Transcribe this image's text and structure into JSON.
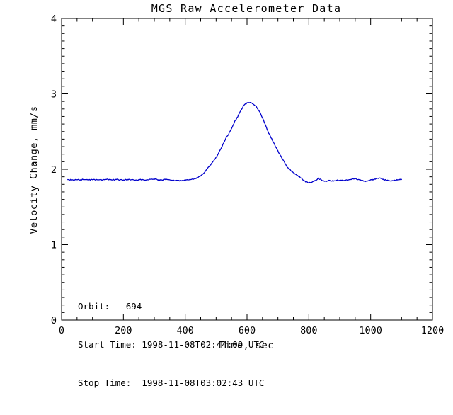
{
  "chart_data": {
    "type": "line",
    "title": "MGS Raw Accelerometer Data",
    "xlabel": "Time, sec",
    "ylabel": "Velocity Change, mm/s",
    "xlim": [
      0,
      1200
    ],
    "ylim": [
      0,
      4
    ],
    "x_major_ticks": [
      0,
      200,
      400,
      600,
      800,
      1000,
      1200
    ],
    "x_minor_step": 50,
    "y_major_ticks": [
      0,
      1,
      2,
      3,
      4
    ],
    "y_minor_step": 0.1,
    "grid": "off",
    "legend": "none",
    "line_color": "#0000cc",
    "axis_color": "#000000",
    "background_color": "#ffffff",
    "series": [
      {
        "name": "Velocity Change",
        "x_start": 20,
        "x_step": 10,
        "values": [
          1.86,
          1.862,
          1.858,
          1.863,
          1.86,
          1.865,
          1.858,
          1.861,
          1.864,
          1.859,
          1.862,
          1.857,
          1.861,
          1.864,
          1.858,
          1.862,
          1.866,
          1.86,
          1.857,
          1.861,
          1.864,
          1.859,
          1.855,
          1.86,
          1.863,
          1.857,
          1.861,
          1.866,
          1.87,
          1.862,
          1.857,
          1.861,
          1.863,
          1.857,
          1.853,
          1.849,
          1.846,
          1.851,
          1.856,
          1.861,
          1.867,
          1.875,
          1.888,
          1.91,
          1.95,
          2.0,
          2.05,
          2.1,
          2.16,
          2.23,
          2.31,
          2.4,
          2.46,
          2.54,
          2.63,
          2.7,
          2.78,
          2.845,
          2.88,
          2.89,
          2.87,
          2.83,
          2.77,
          2.68,
          2.58,
          2.48,
          2.4,
          2.32,
          2.24,
          2.17,
          2.1,
          2.03,
          1.99,
          1.955,
          1.93,
          1.9,
          1.865,
          1.835,
          1.822,
          1.826,
          1.846,
          1.88,
          1.86,
          1.842,
          1.845,
          1.85,
          1.846,
          1.851,
          1.856,
          1.85,
          1.856,
          1.862,
          1.872,
          1.876,
          1.862,
          1.85,
          1.84,
          1.846,
          1.856,
          1.862,
          1.876,
          1.88,
          1.87,
          1.855,
          1.845,
          1.85,
          1.856,
          1.862,
          1.866
        ]
      }
    ],
    "annotations": [
      "Orbit:   694",
      "Start Time: 1998-11-08T02:44:09 UTC",
      "Stop Time:  1998-11-08T03:02:43 UTC"
    ]
  }
}
